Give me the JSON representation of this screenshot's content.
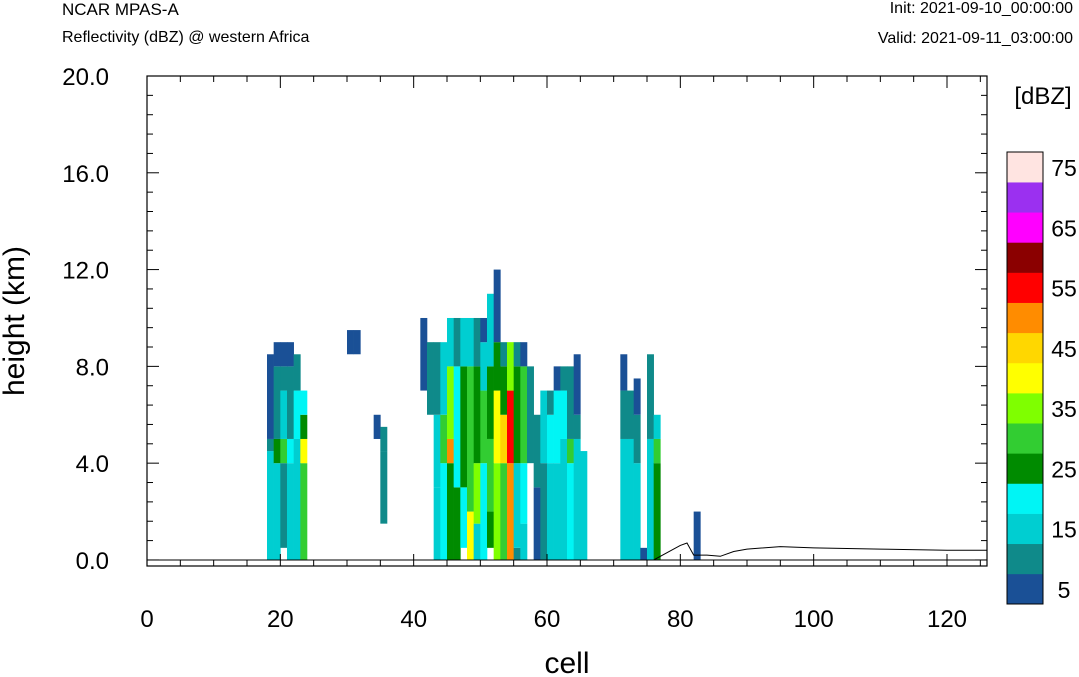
{
  "header": {
    "model": "NCAR MPAS-A",
    "subtitle": "Reflectivity (dBZ) @ western Africa",
    "init": "Init: 2021-09-10_00:00:00",
    "valid": "Valid: 2021-09-11_03:00:00"
  },
  "chart_data": {
    "type": "heatmap",
    "xlabel": "cell",
    "ylabel": "height (km)",
    "xlim": [
      0,
      126
    ],
    "ylim": [
      -0.25,
      20
    ],
    "x_ticks": [
      0,
      20,
      40,
      60,
      80,
      100,
      120
    ],
    "x_tick_labels": [
      "0",
      "20",
      "40",
      "60",
      "80",
      "100",
      "120"
    ],
    "y_ticks": [
      0,
      4,
      8,
      12,
      16,
      20
    ],
    "y_tick_labels": [
      "0.0",
      "4.0",
      "8.0",
      "12.0",
      "16.0",
      "20.0"
    ],
    "colorbar": {
      "title": "[dBZ]",
      "levels": [
        5,
        10,
        15,
        20,
        25,
        30,
        35,
        40,
        45,
        50,
        55,
        60,
        65,
        70,
        75
      ],
      "labels": [
        "5",
        "15",
        "25",
        "35",
        "45",
        "55",
        "65",
        "75"
      ],
      "colors": [
        "#1a5096",
        "#0f8a8a",
        "#00ced1",
        "#00f5f5",
        "#008b00",
        "#32cd32",
        "#7fff00",
        "#ffff00",
        "#ffd700",
        "#ff8c00",
        "#ff0000",
        "#8b0000",
        "#ff00ff",
        "#9b30f0",
        "#ffe4e1"
      ]
    },
    "cell_width_x": 1,
    "cell_height_km": 0.5,
    "columns": [
      {
        "x": 18,
        "bands": [
          [
            0,
            4.5,
            15
          ],
          [
            4.5,
            5,
            10
          ],
          [
            5,
            8.5,
            5
          ]
        ]
      },
      {
        "x": 19,
        "bands": [
          [
            0,
            4,
            15
          ],
          [
            4,
            5,
            25
          ],
          [
            5,
            8,
            10
          ],
          [
            8,
            9,
            5
          ]
        ]
      },
      {
        "x": 20,
        "bands": [
          [
            0.5,
            4,
            10
          ],
          [
            4,
            5,
            30
          ],
          [
            5,
            7,
            15
          ],
          [
            7,
            8,
            10
          ],
          [
            8,
            9,
            5
          ]
        ]
      },
      {
        "x": 21,
        "bands": [
          [
            0,
            4,
            15
          ],
          [
            4,
            5,
            20
          ],
          [
            5,
            8,
            10
          ],
          [
            8,
            9,
            5
          ]
        ]
      },
      {
        "x": 22,
        "bands": [
          [
            0,
            5,
            15
          ],
          [
            5,
            7,
            20
          ],
          [
            7,
            8.5,
            10
          ]
        ]
      },
      {
        "x": 23,
        "bands": [
          [
            0,
            4,
            30
          ],
          [
            4,
            5,
            40
          ],
          [
            5,
            6,
            25
          ],
          [
            6,
            7,
            20
          ]
        ]
      },
      {
        "x": 30,
        "bands": [
          [
            8.5,
            9.5,
            5
          ]
        ]
      },
      {
        "x": 31,
        "bands": [
          [
            8.5,
            9.5,
            5
          ]
        ]
      },
      {
        "x": 34,
        "bands": [
          [
            5,
            6,
            5
          ]
        ]
      },
      {
        "x": 35,
        "bands": [
          [
            1.5,
            4.5,
            10
          ],
          [
            4.5,
            5.5,
            10
          ]
        ]
      },
      {
        "x": 41,
        "bands": [
          [
            7,
            10,
            5
          ]
        ]
      },
      {
        "x": 42,
        "bands": [
          [
            6,
            9,
            10
          ]
        ]
      },
      {
        "x": 43,
        "bands": [
          [
            0,
            3,
            15
          ],
          [
            3,
            6,
            15
          ],
          [
            6,
            9,
            10
          ]
        ]
      },
      {
        "x": 44,
        "bands": [
          [
            0,
            4,
            20
          ],
          [
            4,
            6,
            30
          ],
          [
            6,
            9,
            15
          ]
        ]
      },
      {
        "x": 45,
        "bands": [
          [
            0,
            4,
            25
          ],
          [
            4,
            5,
            50
          ],
          [
            5,
            8,
            35
          ],
          [
            8,
            10,
            15
          ]
        ]
      },
      {
        "x": 46,
        "bands": [
          [
            0,
            3,
            25
          ],
          [
            3,
            8,
            20
          ],
          [
            8,
            10,
            10
          ]
        ]
      },
      {
        "x": 47,
        "bands": [
          [
            0.5,
            3,
            20
          ],
          [
            3,
            8,
            25
          ],
          [
            8,
            10,
            15
          ]
        ]
      },
      {
        "x": 48,
        "bands": [
          [
            0,
            2,
            40
          ],
          [
            2,
            8,
            30
          ],
          [
            8,
            10,
            15
          ]
        ]
      },
      {
        "x": 49,
        "bands": [
          [
            0,
            1.5,
            15
          ],
          [
            1.5,
            4,
            35
          ],
          [
            4,
            8,
            25
          ],
          [
            8,
            10,
            10
          ]
        ]
      },
      {
        "x": 50,
        "bands": [
          [
            0,
            4,
            20
          ],
          [
            4,
            7,
            30
          ],
          [
            7,
            9,
            15
          ],
          [
            9,
            10,
            5
          ]
        ]
      },
      {
        "x": 51,
        "bands": [
          [
            0.5,
            2,
            25
          ],
          [
            2,
            5,
            30
          ],
          [
            5,
            8,
            25
          ],
          [
            8,
            11,
            15
          ]
        ]
      },
      {
        "x": 52,
        "bands": [
          [
            0,
            4,
            35
          ],
          [
            4,
            7,
            40
          ],
          [
            7,
            9,
            25
          ],
          [
            9,
            12,
            5
          ]
        ]
      },
      {
        "x": 53,
        "bands": [
          [
            0,
            4,
            30
          ],
          [
            4,
            6,
            45
          ],
          [
            6,
            8,
            25
          ],
          [
            8,
            9,
            10
          ]
        ]
      },
      {
        "x": 54,
        "bands": [
          [
            0,
            4,
            50
          ],
          [
            4,
            7,
            55
          ],
          [
            7,
            9,
            35
          ]
        ]
      },
      {
        "x": 55,
        "bands": [
          [
            0,
            0.5,
            10
          ],
          [
            0.5,
            4,
            15
          ],
          [
            4,
            8,
            25
          ],
          [
            8,
            9,
            10
          ]
        ]
      },
      {
        "x": 56,
        "bands": [
          [
            0,
            1.5,
            15
          ],
          [
            1.5,
            4,
            20
          ],
          [
            4,
            8,
            30
          ],
          [
            8,
            9,
            5
          ]
        ]
      },
      {
        "x": 57,
        "bands": [
          [
            4,
            8,
            10
          ]
        ]
      },
      {
        "x": 58,
        "bands": [
          [
            0,
            3,
            5
          ],
          [
            3,
            6,
            10
          ]
        ]
      },
      {
        "x": 59,
        "bands": [
          [
            0,
            4,
            10
          ],
          [
            4,
            7,
            15
          ]
        ]
      },
      {
        "x": 60,
        "bands": [
          [
            0,
            4,
            15
          ],
          [
            4,
            6,
            20
          ],
          [
            6,
            7,
            10
          ]
        ]
      },
      {
        "x": 61,
        "bands": [
          [
            0,
            4,
            15
          ],
          [
            4,
            7,
            20
          ],
          [
            7,
            8,
            5
          ]
        ]
      },
      {
        "x": 62,
        "bands": [
          [
            0,
            5,
            15
          ],
          [
            5,
            7,
            20
          ],
          [
            7,
            8,
            10
          ]
        ]
      },
      {
        "x": 63,
        "bands": [
          [
            0,
            4,
            20
          ],
          [
            4,
            5,
            30
          ],
          [
            5,
            8,
            10
          ]
        ]
      },
      {
        "x": 64,
        "bands": [
          [
            0,
            5,
            15
          ],
          [
            5,
            6,
            10
          ],
          [
            6,
            8.5,
            5
          ]
        ]
      },
      {
        "x": 65,
        "bands": [
          [
            0,
            4.5,
            15
          ]
        ]
      },
      {
        "x": 71,
        "bands": [
          [
            0,
            5,
            15
          ],
          [
            5,
            7,
            10
          ],
          [
            7,
            8.5,
            5
          ]
        ]
      },
      {
        "x": 72,
        "bands": [
          [
            0,
            5,
            15
          ],
          [
            5,
            7,
            10
          ]
        ]
      },
      {
        "x": 73,
        "bands": [
          [
            0,
            4,
            15
          ],
          [
            4,
            6,
            10
          ],
          [
            6,
            7.5,
            5
          ]
        ]
      },
      {
        "x": 74,
        "bands": [
          [
            0,
            0.5,
            5
          ]
        ]
      },
      {
        "x": 75,
        "bands": [
          [
            0,
            5,
            15
          ],
          [
            5,
            8.5,
            10
          ]
        ]
      },
      {
        "x": 76,
        "bands": [
          [
            0,
            4,
            25
          ],
          [
            4,
            5,
            30
          ],
          [
            5,
            6,
            15
          ]
        ]
      },
      {
        "x": 82,
        "bands": [
          [
            0,
            2,
            5
          ]
        ]
      }
    ],
    "terrain_line": {
      "x": [
        0,
        76,
        78,
        80,
        81,
        82,
        84,
        86,
        88,
        90,
        95,
        100,
        110,
        120,
        126
      ],
      "y": [
        0,
        0,
        0.3,
        0.6,
        0.7,
        0.2,
        0.2,
        0.15,
        0.35,
        0.45,
        0.55,
        0.5,
        0.45,
        0.4,
        0.4
      ]
    }
  }
}
